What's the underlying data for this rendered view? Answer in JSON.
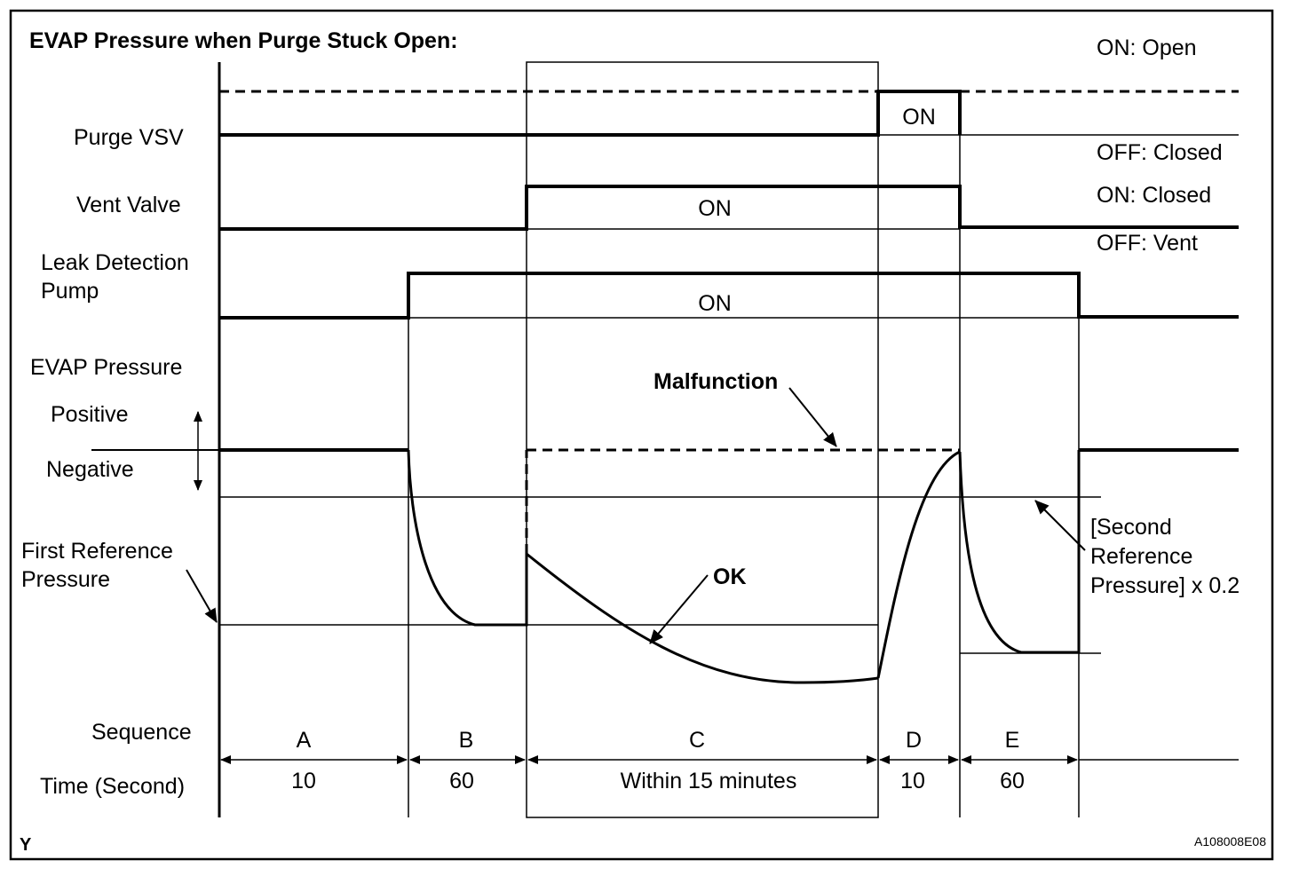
{
  "title": "EVAP Pressure when Purge Stuck Open:",
  "rows": {
    "purge_vsv": "Purge VSV",
    "vent_valve": "Vent Valve",
    "leak_pump_line1": "Leak Detection",
    "leak_pump_line2": "Pump",
    "evap_pressure": "EVAP Pressure",
    "positive": "Positive",
    "negative": "Negative",
    "first_ref_line1": "First Reference",
    "first_ref_line2": "Pressure",
    "sequence": "Sequence",
    "time": "Time (Second)"
  },
  "legend": {
    "purge_on": "ON: Open",
    "purge_off": "OFF: Closed",
    "vent_on": "ON: Closed",
    "vent_off": "OFF: Vent"
  },
  "state_labels": {
    "purge_on": "ON",
    "vent_on": "ON",
    "pump_on": "ON"
  },
  "annotations": {
    "malfunction": "Malfunction",
    "ok": "OK",
    "second_ref_line1": "[Second",
    "second_ref_line2": "Reference",
    "second_ref_line3": "Pressure] x 0.2"
  },
  "sequence": [
    {
      "name": "A",
      "time": "10"
    },
    {
      "name": "B",
      "time": "60"
    },
    {
      "name": "C",
      "time": "Within 15 minutes"
    },
    {
      "name": "D",
      "time": "10"
    },
    {
      "name": "E",
      "time": "60"
    }
  ],
  "corner_left": "Y",
  "figure_id": "A108008E08"
}
